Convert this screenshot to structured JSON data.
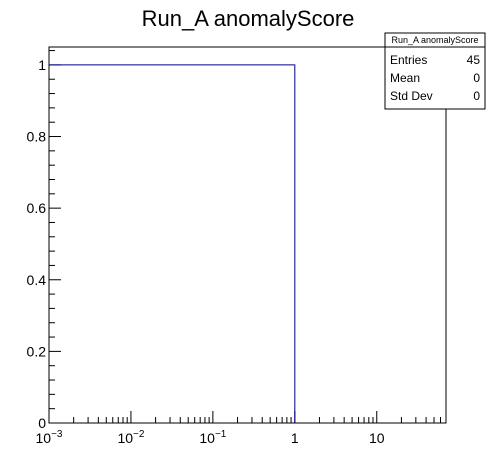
{
  "chart_data": {
    "type": "bar",
    "title": "Run_A anomalyScore",
    "xlabel": "",
    "ylabel": "",
    "x_scale": "log",
    "xlim": [
      0.001,
      70
    ],
    "ylim": [
      0,
      1.05
    ],
    "x_ticks": [
      {
        "value": 0.001,
        "base": "10",
        "exp": "−3"
      },
      {
        "value": 0.01,
        "base": "10",
        "exp": "−2"
      },
      {
        "value": 0.1,
        "base": "10",
        "exp": "−1"
      },
      {
        "value": 1,
        "base": "1",
        "exp": ""
      },
      {
        "value": 10,
        "base": "10",
        "exp": ""
      }
    ],
    "y_ticks": [
      {
        "value": 0,
        "label": "0"
      },
      {
        "value": 0.2,
        "label": "0.2"
      },
      {
        "value": 0.4,
        "label": "0.4"
      },
      {
        "value": 0.6,
        "label": "0.6"
      },
      {
        "value": 0.8,
        "label": "0.8"
      },
      {
        "value": 1,
        "label": "1"
      }
    ],
    "bins": [
      {
        "low": 0.001,
        "high": 1,
        "value": 1
      }
    ],
    "line_color": "#00008b",
    "grid": false,
    "stats_box": {
      "title": "Run_A anomalyScore",
      "position": "top-right",
      "rows": [
        {
          "label": "Entries",
          "value": "45"
        },
        {
          "label": "Mean",
          "value": "0"
        },
        {
          "label": "Std Dev",
          "value": "0"
        }
      ]
    }
  }
}
